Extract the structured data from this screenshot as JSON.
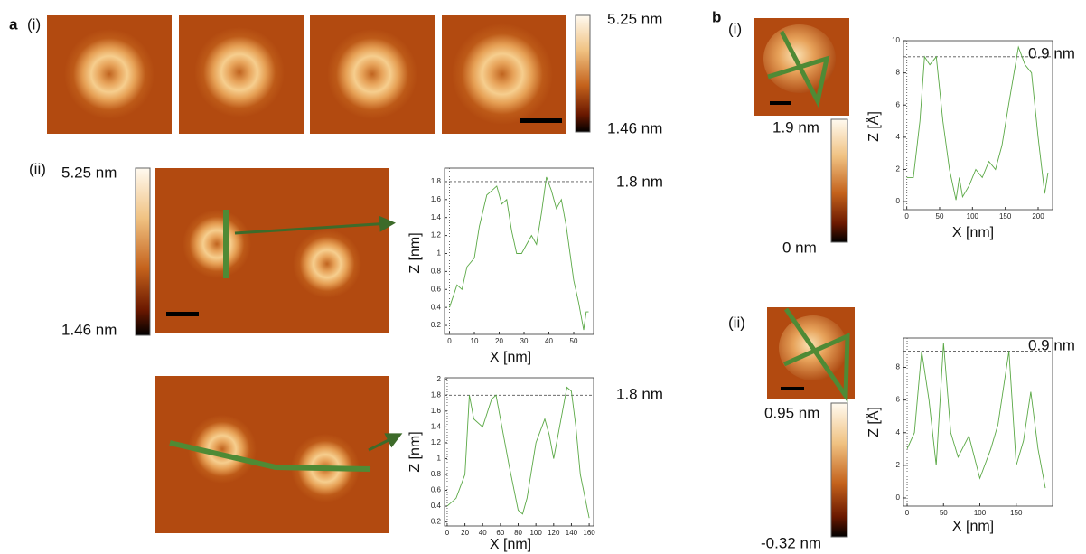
{
  "labels": {
    "panel_a": "a",
    "a_i": "(i)",
    "a_ii": "(ii)",
    "panel_b": "b",
    "b_i": "(i)",
    "b_ii": "(ii)",
    "cbar_a_i_max": "5.25 nm",
    "cbar_a_i_min": "1.46 nm",
    "cbar_a_ii_max": "5.25 nm",
    "cbar_a_ii_min": "1.46 nm",
    "cbar_b_i_max": "1.9 nm",
    "cbar_b_i_min": "0 nm",
    "cbar_b_ii_max": "0.95 nm",
    "cbar_b_ii_min": "-0.32 nm"
  },
  "chart_data": [
    {
      "type": "line",
      "xlabel": "X [nm]",
      "ylabel": "Z [nm]",
      "color": "#5aa845",
      "annotation": "1.8 nm",
      "ref_line": 1.8,
      "x": [
        0,
        3,
        5,
        7,
        10,
        12,
        15,
        17,
        19,
        21,
        23,
        25,
        27,
        29,
        31,
        33,
        35,
        37,
        39,
        41,
        43,
        45,
        47,
        50,
        52,
        54,
        55,
        56
      ],
      "values": [
        0.4,
        0.65,
        0.6,
        0.85,
        0.95,
        1.3,
        1.65,
        1.7,
        1.75,
        1.55,
        1.6,
        1.25,
        1.0,
        1.0,
        1.1,
        1.2,
        1.1,
        1.45,
        1.85,
        1.7,
        1.5,
        1.6,
        1.3,
        0.7,
        0.45,
        0.15,
        0.35,
        0.35
      ],
      "xlim": [
        -2,
        58
      ],
      "ylim": [
        0.1,
        1.95
      ],
      "xticks": [
        0,
        10,
        20,
        30,
        40,
        50
      ],
      "yticks": [
        0.2,
        0.4,
        0.6,
        0.8,
        1,
        1.2,
        1.4,
        1.6,
        1.8
      ]
    },
    {
      "type": "line",
      "xlabel": "X [nm]",
      "ylabel": "Z [nm]",
      "color": "#5aa845",
      "annotation": "1.8 nm",
      "ref_line": 1.8,
      "x": [
        0,
        10,
        20,
        25,
        30,
        40,
        50,
        55,
        60,
        70,
        80,
        85,
        90,
        100,
        110,
        115,
        120,
        130,
        135,
        140,
        145,
        150,
        160
      ],
      "values": [
        0.4,
        0.5,
        0.8,
        1.8,
        1.5,
        1.4,
        1.75,
        1.8,
        1.5,
        0.9,
        0.35,
        0.3,
        0.5,
        1.2,
        1.5,
        1.3,
        1.0,
        1.6,
        1.9,
        1.85,
        1.4,
        0.8,
        0.25
      ],
      "xlim": [
        -3,
        165
      ],
      "ylim": [
        0.15,
        2.02
      ],
      "xticks": [
        0,
        20,
        40,
        60,
        80,
        100,
        120,
        140,
        160
      ],
      "yticks": [
        0.2,
        0.4,
        0.6,
        0.8,
        1,
        1.2,
        1.4,
        1.6,
        1.8,
        2
      ]
    },
    {
      "type": "line",
      "xlabel": "X [nm]",
      "ylabel": "Z [Å]",
      "color": "#5aa845",
      "annotation": "0.9 nm",
      "ref_line": 9,
      "x": [
        0,
        10,
        20,
        27,
        35,
        45,
        55,
        65,
        75,
        80,
        85,
        95,
        105,
        115,
        125,
        135,
        145,
        155,
        170,
        180,
        190,
        200,
        210,
        215
      ],
      "values": [
        1.5,
        1.5,
        5,
        9,
        8.5,
        9,
        5,
        2,
        0.1,
        1.5,
        0.3,
        1,
        2,
        1.5,
        2.5,
        2,
        3.5,
        6,
        9.6,
        8.5,
        8,
        4,
        0.5,
        1.8
      ],
      "xlim": [
        -5,
        222
      ],
      "ylim": [
        -0.5,
        10
      ],
      "xticks": [
        0,
        50,
        100,
        150,
        200
      ],
      "yticks": [
        0,
        2,
        4,
        6,
        8,
        10
      ]
    },
    {
      "type": "line",
      "xlabel": "X [nm]",
      "ylabel": "Z [Å]",
      "color": "#5aa845",
      "annotation": "0.9 nm",
      "ref_line": 9,
      "x": [
        0,
        10,
        20,
        30,
        40,
        50,
        60,
        70,
        85,
        100,
        115,
        125,
        140,
        150,
        160,
        170,
        180,
        190
      ],
      "values": [
        3,
        4,
        9,
        6,
        2,
        9.5,
        4,
        2.5,
        3.8,
        1.2,
        3,
        4.5,
        9,
        2,
        3.5,
        6.5,
        3,
        0.6
      ],
      "xlim": [
        -5,
        200
      ],
      "ylim": [
        -0.5,
        9.8
      ],
      "xticks": [
        0,
        50,
        100,
        150
      ],
      "yticks": [
        0,
        2,
        4,
        6,
        8
      ]
    }
  ]
}
